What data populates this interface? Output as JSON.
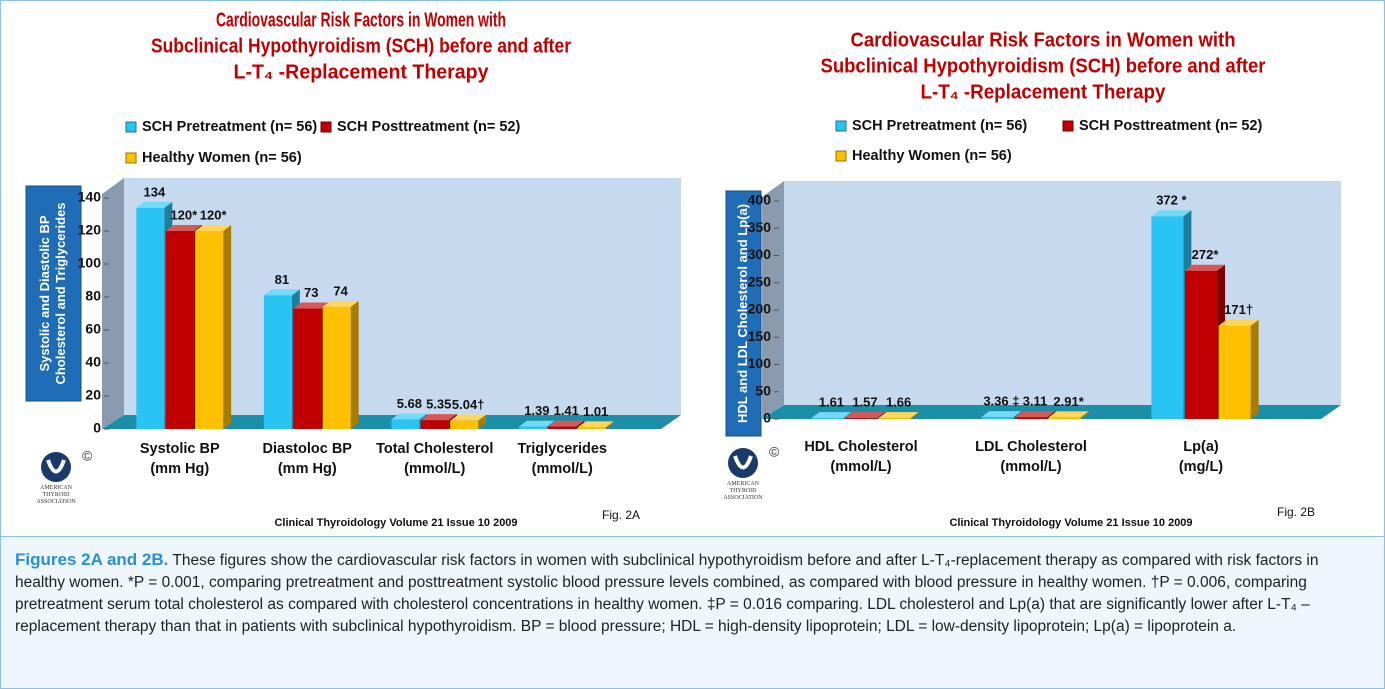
{
  "chart_data": [
    {
      "type": "bar",
      "title": [
        "Cardiovascular Risk Factors in Women with",
        "Subclinical Hypothyroidism (SCH) before and after",
        "L-T₄ -Replacement Therapy"
      ],
      "y_label": [
        "Systolic and Diastolic BP",
        "Cholesterol and Triglycerides"
      ],
      "categories": [
        "Systolic BP\n(mm Hg)",
        "Diastoloc BP\n(mm Hg)",
        "Total Cholesterol\n(mmol/L)",
        "Triglycerides\n(mmol/L)"
      ],
      "series": [
        {
          "name": "SCH Pretreatment (n= 56)",
          "color": "#29c4f2",
          "values": [
            134,
            81,
            5.68,
            1.39
          ]
        },
        {
          "name": "SCH Posttreatment (n= 52)",
          "color": "#c00000",
          "values": [
            120,
            73,
            5.35,
            1.41
          ],
          "value_labels": [
            "120*",
            "73",
            "5.35",
            "1.41"
          ]
        },
        {
          "name": "Healthy Women (n= 56)",
          "color": "#ffc000",
          "values": [
            120,
            74,
            5.04,
            1.01
          ],
          "value_labels": [
            "120*",
            "74",
            "5.04†",
            "1.01"
          ]
        }
      ],
      "ylim": [
        0,
        140
      ],
      "yticks": [
        0,
        20,
        40,
        60,
        80,
        100,
        120,
        140
      ],
      "source": "Clinical Thyroidology Volume 21 Issue 10 2009",
      "figure_label": "Fig. 2A",
      "logo": {
        "symbol": "©",
        "text": "AMERICAN THYROID ASSOCIATION"
      }
    },
    {
      "type": "bar",
      "title": [
        "Cardiovascular Risk Factors in Women with",
        "Subclinical Hypothyroidism (SCH) before and after",
        "L-T₄ -Replacement Therapy"
      ],
      "y_label": [
        "HDL and LDL Cholesterol and Lp(a)"
      ],
      "categories": [
        "HDL Cholesterol\n(mmol/L)",
        "LDL Cholesterol\n(mmol/L)",
        "Lp(a)\n(mg/L)"
      ],
      "series": [
        {
          "name": "SCH Pretreatment (n= 56)",
          "color": "#29c4f2",
          "values": [
            1.61,
            3.36,
            372
          ],
          "value_labels": [
            "1.61",
            "3.36 ‡",
            "372 *"
          ]
        },
        {
          "name": "SCH Posttreatment (n= 52)",
          "color": "#c00000",
          "values": [
            1.57,
            3.11,
            272
          ],
          "value_labels": [
            "1.57",
            "3.11",
            "272*"
          ]
        },
        {
          "name": "Healthy Women (n= 56)",
          "color": "#ffc000",
          "values": [
            1.66,
            2.91,
            171
          ],
          "value_labels": [
            "1.66",
            "2.91*",
            "171†"
          ]
        }
      ],
      "ylim": [
        0,
        400
      ],
      "yticks": [
        0,
        50,
        100,
        150,
        200,
        250,
        300,
        350,
        400
      ],
      "source": "Clinical Thyroidology Volume 21 Issue 10 2009",
      "figure_label": "Fig. 2B",
      "logo": {
        "symbol": "©",
        "text": "AMERICAN THYROID ASSOCIATION"
      }
    }
  ],
  "caption": {
    "lead": "Figures 2A and 2B.",
    "text": "These figures show the cardiovascular risk factors in women with subclinical hypothyroidism before and after L-T₄-replacement therapy as compared with risk factors in healthy women. *P = 0.001, comparing pretreatment and posttreatment systolic blood pressure levels combined, as compared with blood pressure in healthy women. †P = 0.006, comparing pretreatment serum total cholesterol as compared with cholesterol concentrations in healthy women. ‡P = 0.016 comparing. LDL cholesterol and Lp(a) that are significantly lower after L-T₄ –replacement therapy than that in patients with subclinical hypothyroidism. BP = blood pressure; HDL = high-density lipoprotein; LDL = low-density lipoprotein; Lp(a) = lipoprotein a."
  }
}
